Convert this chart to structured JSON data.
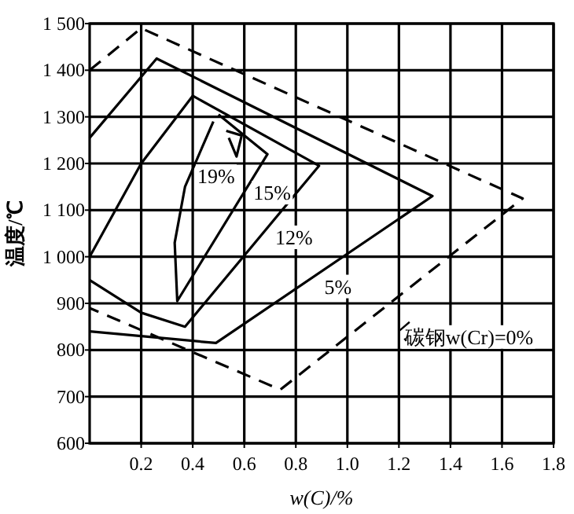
{
  "chart_data": {
    "type": "line",
    "xlabel": "w(C)/%",
    "ylabel": "温度/℃",
    "xlim": [
      0,
      1.8
    ],
    "ylim": [
      600,
      1500
    ],
    "xticks": [
      0.2,
      0.4,
      0.6,
      0.8,
      {
        "value": 1,
        "label": "1.0"
      },
      1.2,
      1.4,
      1.6,
      1.8
    ],
    "yticks": [
      600,
      700,
      800,
      900,
      {
        "value": 1000,
        "label": "1 000"
      },
      {
        "value": 1100,
        "label": "1 100"
      },
      {
        "value": 1200,
        "label": "1 200"
      },
      {
        "value": 1300,
        "label": "1 300"
      },
      {
        "value": 1400,
        "label": "1 400"
      },
      {
        "value": 1500,
        "label": "1 500"
      }
    ],
    "grid": true,
    "marker": "none",
    "series": [
      {
        "name": "5%",
        "color": "#000000",
        "line_style": "solid",
        "x": [
          0,
          0.26,
          1.33,
          0.49,
          0
        ],
        "values": [
          1255,
          1425,
          1130,
          815,
          840
        ]
      },
      {
        "name": "12%",
        "color": "#000000",
        "line_style": "solid",
        "x": [
          0,
          0.2,
          0.37,
          0.89,
          0.4,
          0.2,
          0
        ],
        "values": [
          950,
          880,
          850,
          1195,
          1345,
          1200,
          1000
        ]
      },
      {
        "name": "15%",
        "color": "#000000",
        "line_style": "solid",
        "x": [
          0.5,
          0.69,
          0.34,
          0.33,
          0.37,
          0.48
        ],
        "values": [
          1305,
          1220,
          905,
          1030,
          1150,
          1290
        ]
      },
      {
        "name": "19%",
        "color": "#000000",
        "line_style": "solid",
        "x": [
          0.53,
          0.59,
          0.57,
          0.54
        ],
        "values": [
          1270,
          1260,
          1215,
          1255
        ]
      },
      {
        "name": "碳钢w(Cr)=0%",
        "color": "#000000",
        "line_style": "dashed",
        "x": [
          0,
          0.2,
          1.68,
          0.74,
          0
        ],
        "values": [
          1400,
          1490,
          1125,
          715,
          890
        ]
      }
    ]
  }
}
